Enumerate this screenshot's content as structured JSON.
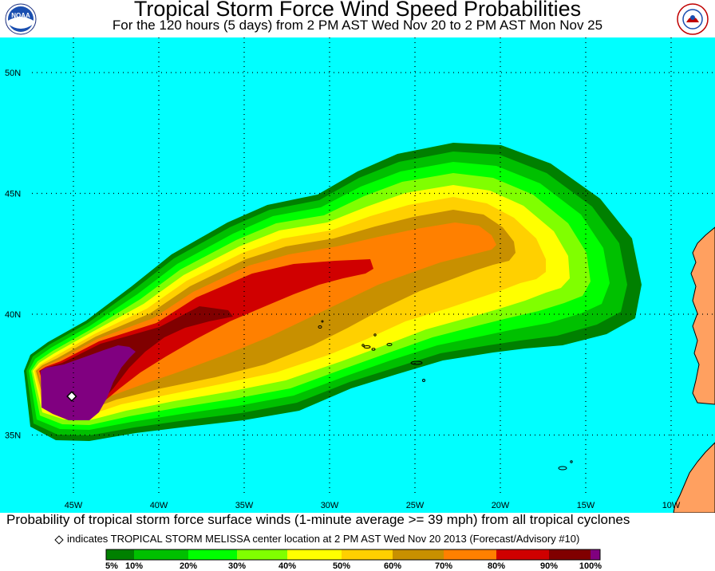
{
  "header": {
    "title": "Tropical Storm Force Wind Speed Probabilities",
    "subtitle": "For the 120 hours (5 days) from 2 PM AST Wed Nov 20 to 2 PM AST Mon Nov 25",
    "logo_left": "NOAA",
    "logo_right_icon": "nws-logo-icon"
  },
  "map": {
    "ocean_color": "#00ffff",
    "land_color": "#ffa060",
    "lat_labels": [
      "50N",
      "45N",
      "40N",
      "35N"
    ],
    "lon_labels": [
      "45W",
      "40W",
      "35W",
      "30W",
      "25W",
      "20W",
      "15W",
      "10W"
    ],
    "storm_marker": {
      "lat": 36.6,
      "lon": -45.1
    }
  },
  "caption": "Probability of tropical storm force surface winds (1-minute average >= 39 mph) from all tropical cyclones",
  "note": "indicates TROPICAL STORM MELISSA center location at 2 PM AST Wed Nov 20 2013 (Forecast/Advisory #10)",
  "legend": {
    "colors": [
      "#008000",
      "#00c000",
      "#00ff00",
      "#80ff00",
      "#ffff00",
      "#ffd000",
      "#c89000",
      "#ff8000",
      "#d00000",
      "#800000",
      "#800080"
    ],
    "labels": [
      "5%",
      "10%",
      "20%",
      "30%",
      "40%",
      "50%",
      "60%",
      "70%",
      "80%",
      "90%",
      "100%"
    ]
  }
}
